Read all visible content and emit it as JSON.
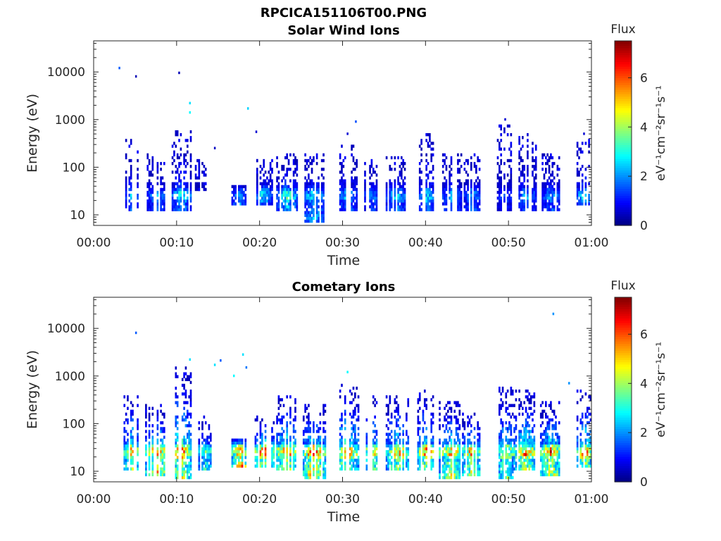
{
  "figure": {
    "title": "RPCICA151106T00.PNG"
  },
  "chart_data": [
    {
      "type": "heatmap",
      "title": "Solar Wind Ions",
      "xlabel": "Time",
      "ylabel": "Energy (eV)",
      "x_range_minutes": [
        0,
        60
      ],
      "x_tick_labels": [
        "00:00",
        "00:10",
        "00:20",
        "00:30",
        "00:40",
        "00:50",
        "01:00"
      ],
      "y_scale": "log",
      "y_range": [
        6,
        45000
      ],
      "y_tick_values": [
        10,
        100,
        1000,
        10000
      ],
      "y_tick_labels": [
        "10",
        "100",
        "1000",
        "10000"
      ],
      "colorbar": {
        "label": "Flux",
        "units": "eV⁻¹cm⁻²sr⁻¹s⁻¹",
        "range": [
          0,
          7.5
        ],
        "tick_values": [
          0,
          2,
          4,
          6
        ],
        "tick_labels": [
          "0",
          "2",
          "4",
          "6"
        ],
        "colormap": "jet"
      },
      "bursts": [
        {
          "t": 4.5,
          "w": 1.6,
          "elo": 12,
          "ehi": 400,
          "peak": 2.6
        },
        {
          "t": 7.5,
          "w": 2.2,
          "elo": 12,
          "ehi": 200,
          "peak": 2.4
        },
        {
          "t": 10.5,
          "w": 2.2,
          "elo": 12,
          "ehi": 600,
          "peak": 3.2
        },
        {
          "t": 12.8,
          "w": 1.4,
          "elo": 30,
          "ehi": 150,
          "peak": 1.4
        },
        {
          "t": 17.5,
          "w": 1.6,
          "elo": 16,
          "ehi": 45,
          "peak": 2.4
        },
        {
          "t": 20.5,
          "w": 2.0,
          "elo": 16,
          "ehi": 150,
          "peak": 3.0
        },
        {
          "t": 23.2,
          "w": 2.5,
          "elo": 12,
          "ehi": 200,
          "peak": 3.6
        },
        {
          "t": 26.5,
          "w": 2.5,
          "elo": 7,
          "ehi": 200,
          "peak": 3.0
        },
        {
          "t": 30.5,
          "w": 2.5,
          "elo": 12,
          "ehi": 300,
          "peak": 2.6
        },
        {
          "t": 33.5,
          "w": 1.8,
          "elo": 12,
          "ehi": 150,
          "peak": 2.2
        },
        {
          "t": 36.5,
          "w": 2.5,
          "elo": 12,
          "ehi": 200,
          "peak": 2.8
        },
        {
          "t": 40,
          "w": 1.8,
          "elo": 12,
          "ehi": 500,
          "peak": 3.0
        },
        {
          "t": 43,
          "w": 2.5,
          "elo": 12,
          "ehi": 200,
          "peak": 2.4
        },
        {
          "t": 45.5,
          "w": 2.0,
          "elo": 12,
          "ehi": 200,
          "peak": 2.4
        },
        {
          "t": 49.5,
          "w": 1.8,
          "elo": 12,
          "ehi": 800,
          "peak": 1.8
        },
        {
          "t": 52,
          "w": 2.5,
          "elo": 12,
          "ehi": 500,
          "peak": 2.4
        },
        {
          "t": 55,
          "w": 2.2,
          "elo": 12,
          "ehi": 200,
          "peak": 2.4
        },
        {
          "t": 59,
          "w": 1.6,
          "elo": 16,
          "ehi": 400,
          "peak": 3.0
        }
      ],
      "sparse_points": [
        {
          "t": 3.0,
          "e": 12000,
          "v": 1.6
        },
        {
          "t": 5.0,
          "e": 8000,
          "v": 0.4
        },
        {
          "t": 10.2,
          "e": 9500,
          "v": 0.4
        },
        {
          "t": 11.5,
          "e": 2200,
          "v": 2.6
        },
        {
          "t": 11.5,
          "e": 1400,
          "v": 2.8
        },
        {
          "t": 14.5,
          "e": 250,
          "v": 0.5
        },
        {
          "t": 18.5,
          "e": 1700,
          "v": 2.5
        },
        {
          "t": 19.5,
          "e": 550,
          "v": 0.6
        },
        {
          "t": 30.5,
          "e": 500,
          "v": 0.6
        },
        {
          "t": 31.5,
          "e": 900,
          "v": 1.5
        },
        {
          "t": 49.5,
          "e": 1000,
          "v": 0.6
        },
        {
          "t": 59,
          "e": 500,
          "v": 0.6
        }
      ]
    },
    {
      "type": "heatmap",
      "title": "Cometary Ions",
      "xlabel": "Time",
      "ylabel": "Energy (eV)",
      "x_range_minutes": [
        0,
        60
      ],
      "x_tick_labels": [
        "00:00",
        "00:10",
        "00:20",
        "00:30",
        "00:40",
        "00:50",
        "01:00"
      ],
      "y_scale": "log",
      "y_range": [
        6,
        45000
      ],
      "y_tick_values": [
        10,
        100,
        1000,
        10000
      ],
      "y_tick_labels": [
        "10",
        "100",
        "1000",
        "10000"
      ],
      "colorbar": {
        "label": "Flux",
        "units": "eV⁻¹cm⁻²sr⁻¹s⁻¹",
        "range": [
          0,
          7.5
        ],
        "tick_values": [
          0,
          2,
          4,
          6
        ],
        "tick_labels": [
          "0",
          "2",
          "4",
          "6"
        ],
        "colormap": "jet"
      },
      "bursts": [
        {
          "t": 4.5,
          "w": 1.8,
          "elo": 10,
          "ehi": 400,
          "peak": 6.2
        },
        {
          "t": 7.5,
          "w": 2.4,
          "elo": 8,
          "ehi": 250,
          "peak": 6.6
        },
        {
          "t": 10.5,
          "w": 2.4,
          "elo": 7,
          "ehi": 1500,
          "peak": 6.8
        },
        {
          "t": 13.5,
          "w": 2.0,
          "elo": 10,
          "ehi": 150,
          "peak": 4.0
        },
        {
          "t": 17.5,
          "w": 1.8,
          "elo": 12,
          "ehi": 50,
          "peak": 6.0
        },
        {
          "t": 20.5,
          "w": 2.2,
          "elo": 12,
          "ehi": 150,
          "peak": 6.8
        },
        {
          "t": 23.2,
          "w": 2.8,
          "elo": 10,
          "ehi": 400,
          "peak": 6.4
        },
        {
          "t": 26.5,
          "w": 2.8,
          "elo": 7,
          "ehi": 250,
          "peak": 6.6
        },
        {
          "t": 30.5,
          "w": 2.8,
          "elo": 10,
          "ehi": 700,
          "peak": 6.4
        },
        {
          "t": 33.5,
          "w": 2.2,
          "elo": 10,
          "ehi": 400,
          "peak": 5.4
        },
        {
          "t": 36.5,
          "w": 2.8,
          "elo": 10,
          "ehi": 400,
          "peak": 5.8
        },
        {
          "t": 40,
          "w": 2.0,
          "elo": 10,
          "ehi": 500,
          "peak": 6.2
        },
        {
          "t": 43,
          "w": 2.8,
          "elo": 7,
          "ehi": 300,
          "peak": 5.8
        },
        {
          "t": 45.5,
          "w": 2.2,
          "elo": 8,
          "ehi": 200,
          "peak": 5.8
        },
        {
          "t": 49.5,
          "w": 2.0,
          "elo": 7,
          "ehi": 600,
          "peak": 5.6
        },
        {
          "t": 52,
          "w": 2.8,
          "elo": 10,
          "ehi": 500,
          "peak": 6.2
        },
        {
          "t": 55,
          "w": 2.4,
          "elo": 8,
          "ehi": 300,
          "peak": 6.4
        },
        {
          "t": 59,
          "w": 1.8,
          "elo": 12,
          "ehi": 500,
          "peak": 6.6
        }
      ],
      "sparse_points": [
        {
          "t": 5.0,
          "e": 8000,
          "v": 1.6
        },
        {
          "t": 11.5,
          "e": 2200,
          "v": 2.6
        },
        {
          "t": 14.5,
          "e": 1700,
          "v": 2.6
        },
        {
          "t": 15.2,
          "e": 2100,
          "v": 1.6
        },
        {
          "t": 16.8,
          "e": 1000,
          "v": 2.8
        },
        {
          "t": 17.9,
          "e": 2800,
          "v": 2.6
        },
        {
          "t": 18.3,
          "e": 1500,
          "v": 1.8
        },
        {
          "t": 30.5,
          "e": 1200,
          "v": 2.8
        },
        {
          "t": 55.3,
          "e": 20000,
          "v": 2.0
        },
        {
          "t": 57.2,
          "e": 700,
          "v": 2.0
        }
      ]
    }
  ]
}
